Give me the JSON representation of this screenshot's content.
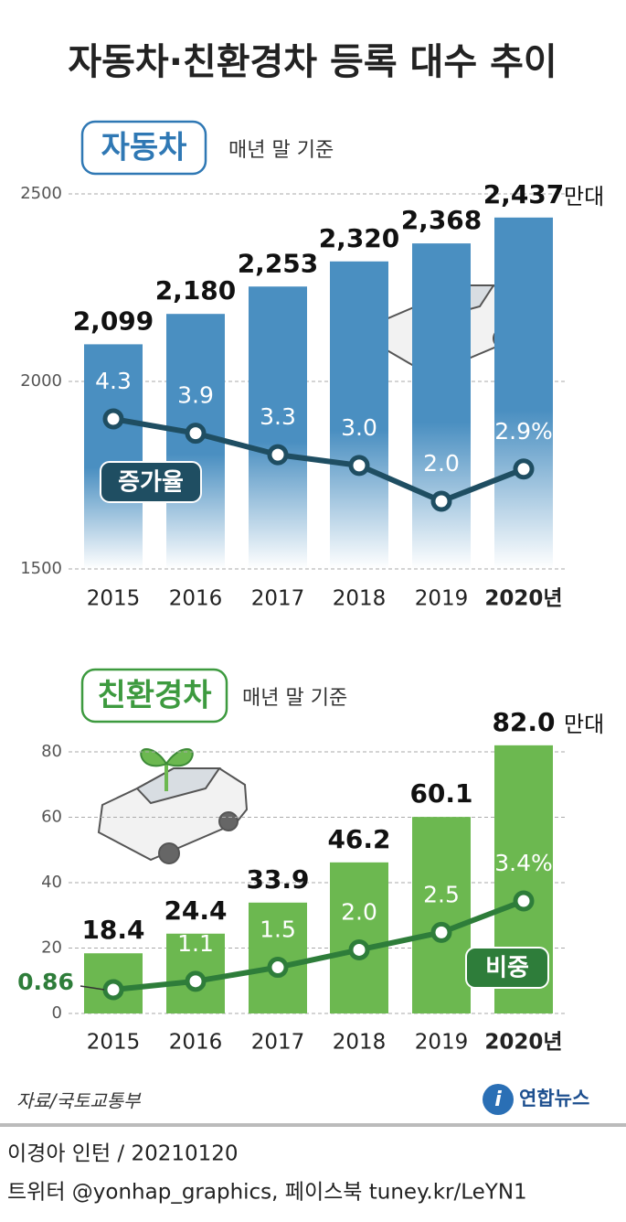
{
  "title": "자동차·친환경차 등록 대수 추이",
  "chart_data": [
    {
      "type": "bar",
      "label": "자동차",
      "subtitle": "매년 말 기준",
      "unit": "만대",
      "categories": [
        "2015",
        "2016",
        "2017",
        "2018",
        "2019",
        "2020년"
      ],
      "values": [
        2099,
        2180,
        2253,
        2320,
        2368,
        2437
      ],
      "value_labels": [
        "2,099",
        "2,180",
        "2,253",
        "2,320",
        "2,368",
        "2,437"
      ],
      "color": "#4a8fc1",
      "ylim": [
        1500,
        2500
      ],
      "yticks": [
        1500,
        2000,
        2500
      ],
      "grid": true,
      "series": [
        {
          "name": "증가율",
          "color": "#1f4e62",
          "values": [
            4.3,
            3.9,
            3.3,
            3.0,
            2.0,
            2.9
          ],
          "value_labels": [
            "4.3",
            "3.9",
            "3.3",
            "3.0",
            "2.0",
            "2.9%"
          ]
        }
      ]
    },
    {
      "type": "bar",
      "label": "친환경차",
      "subtitle": "매년 말 기준",
      "unit": "만대",
      "categories": [
        "2015",
        "2016",
        "2017",
        "2018",
        "2019",
        "2020년"
      ],
      "values": [
        18.4,
        24.4,
        33.9,
        46.2,
        60.1,
        82.0
      ],
      "value_labels": [
        "18.4",
        "24.4",
        "33.9",
        "46.2",
        "60.1",
        "82.0"
      ],
      "color": "#6cb850",
      "ylim": [
        0,
        80
      ],
      "yticks": [
        0,
        20,
        40,
        60,
        80
      ],
      "grid": true,
      "series": [
        {
          "name": "비중",
          "color": "#2e7d3a",
          "values": [
            0.86,
            1.1,
            1.5,
            2.0,
            2.5,
            3.4
          ],
          "value_labels": [
            "0.86",
            "1.1",
            "1.5",
            "2.0",
            "2.5",
            "3.4%"
          ]
        }
      ]
    }
  ],
  "source": "자료/국토교통부",
  "logo": "연합뉴스",
  "credit": "이경아 인턴 / 20210120",
  "social": "트위터 @yonhap_graphics, 페이스북 tuney.kr/LeYN1"
}
